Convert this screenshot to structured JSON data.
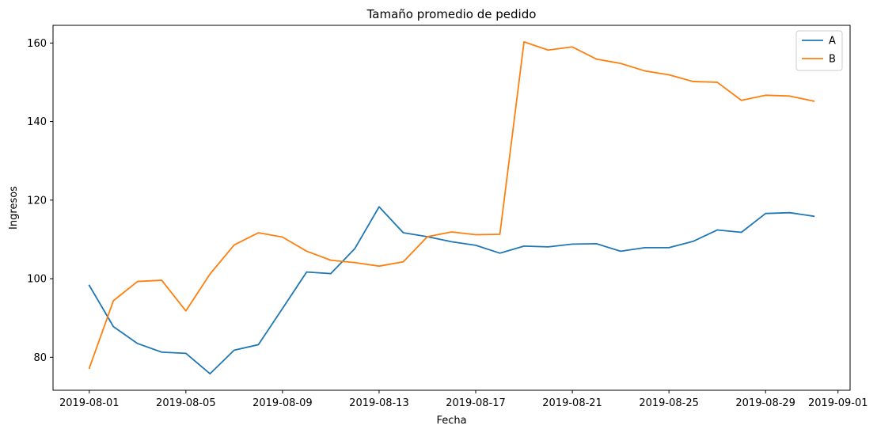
{
  "chart_data": {
    "type": "line",
    "title": "Tamaño promedio de pedido",
    "xlabel": "Fecha",
    "ylabel": "Ingresos",
    "x": [
      "2019-08-01",
      "2019-08-02",
      "2019-08-03",
      "2019-08-04",
      "2019-08-05",
      "2019-08-06",
      "2019-08-07",
      "2019-08-08",
      "2019-08-09",
      "2019-08-10",
      "2019-08-11",
      "2019-08-12",
      "2019-08-13",
      "2019-08-14",
      "2019-08-15",
      "2019-08-16",
      "2019-08-17",
      "2019-08-18",
      "2019-08-19",
      "2019-08-20",
      "2019-08-21",
      "2019-08-22",
      "2019-08-23",
      "2019-08-24",
      "2019-08-25",
      "2019-08-26",
      "2019-08-27",
      "2019-08-28",
      "2019-08-29",
      "2019-08-30",
      "2019-08-31"
    ],
    "series": [
      {
        "name": "A",
        "color": "#1f77b4",
        "values": [
          98.3,
          87.8,
          83.5,
          81.3,
          81.0,
          75.8,
          81.8,
          83.2,
          92.4,
          101.7,
          101.3,
          107.7,
          118.3,
          111.7,
          110.7,
          109.4,
          108.5,
          106.5,
          108.3,
          108.1,
          108.8,
          108.9,
          107.0,
          107.9,
          107.9,
          109.5,
          112.4,
          111.8,
          116.6,
          116.8,
          115.9
        ]
      },
      {
        "name": "B",
        "color": "#ff7f0e",
        "values": [
          77.2,
          94.4,
          99.3,
          99.6,
          91.8,
          101.2,
          108.6,
          111.7,
          110.6,
          107.0,
          104.7,
          104.1,
          103.2,
          104.3,
          110.7,
          111.9,
          111.2,
          111.3,
          160.3,
          158.2,
          159.0,
          155.9,
          154.8,
          152.9,
          151.9,
          150.2,
          150.0,
          145.4,
          146.7,
          146.5,
          145.2
        ]
      }
    ],
    "xticks": [
      "2019-08-01",
      "2019-08-05",
      "2019-08-09",
      "2019-08-13",
      "2019-08-17",
      "2019-08-21",
      "2019-08-25",
      "2019-08-29",
      "2019-09-01"
    ],
    "yticks": [
      80,
      100,
      120,
      140,
      160
    ],
    "xlim": [
      "2019-07-30T12:00",
      "2019-09-01T12:00"
    ],
    "ylim": [
      71.6,
      164.5
    ],
    "grid": false,
    "legend_position": "top-right"
  }
}
